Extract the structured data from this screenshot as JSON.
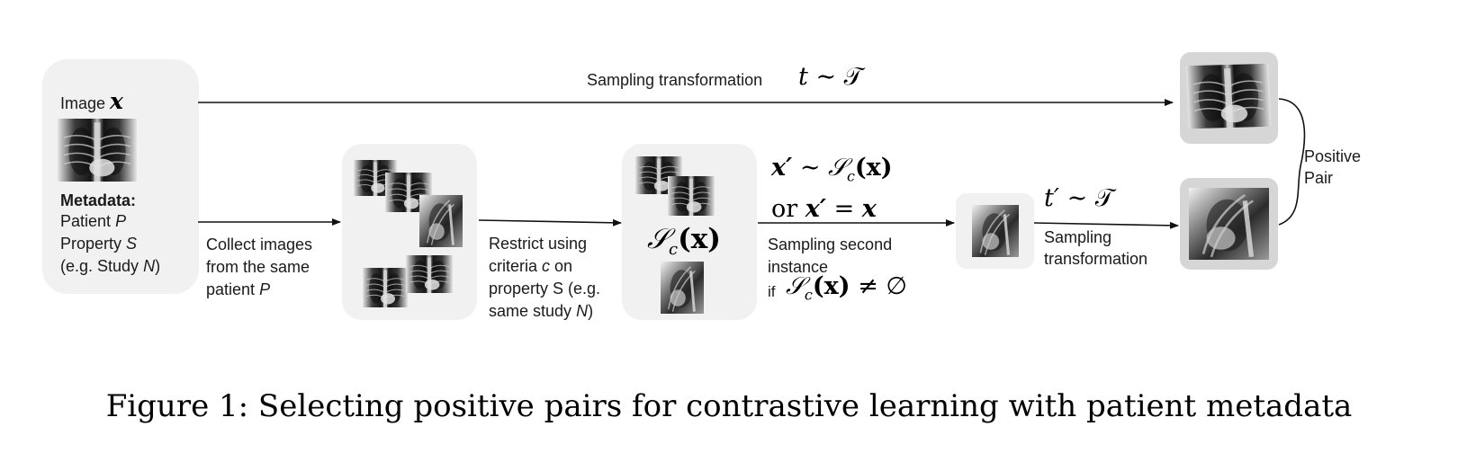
{
  "input": {
    "image_label": "Image",
    "image_symbol": "x",
    "metadata_title": "Metadata:",
    "patient_prefix": "Patient",
    "patient_symbol": "P",
    "property_prefix": "Property",
    "property_symbol": "S",
    "study_prefix": "(e.g. Study",
    "study_symbol": "N",
    "study_suffix": ")"
  },
  "top_arrow": {
    "label": "Sampling transformation",
    "math_var": "t",
    "math_rel": "∼",
    "math_set": "𝒯"
  },
  "collect": {
    "line1": "Collect images",
    "line2": "from the same",
    "line3_prefix": "patient",
    "line3_symbol": "P"
  },
  "restrict": {
    "line1": "Restrict using",
    "line2_prefix": "criteria",
    "line2_symbol": "c",
    "line2_suffix": "on",
    "line3": "property S (e.g.",
    "line4_prefix": "same study",
    "line4_symbol": "N",
    "line4_suffix": ")"
  },
  "subset_box": {
    "set_symbol": "𝒮",
    "set_sub": "c",
    "arg": "(x)"
  },
  "second_sample": {
    "eq1_lhs": "x′",
    "eq1_rel": "∼",
    "eq1_set": "𝒮",
    "eq1_sub": "c",
    "eq1_arg": "(x)",
    "eq2_or": "or",
    "eq2_lhs": "x′",
    "eq2_rel": "=",
    "eq2_rhs": "x",
    "label_line1": "Sampling second",
    "label_line2": "instance",
    "cond_if": "if",
    "cond_set": "𝒮",
    "cond_sub": "c",
    "cond_arg": "(x)",
    "cond_rel": "≠",
    "cond_empty": "∅"
  },
  "second_transform": {
    "math_var": "t′",
    "math_rel": "∼",
    "math_set": "𝒯",
    "label_line1": "Sampling",
    "label_line2": "transformation"
  },
  "output": {
    "pair_line1": "Positive",
    "pair_line2": "Pair"
  },
  "caption": "Figure 1: Selecting positive pairs for contrastive learning with patient metadata"
}
